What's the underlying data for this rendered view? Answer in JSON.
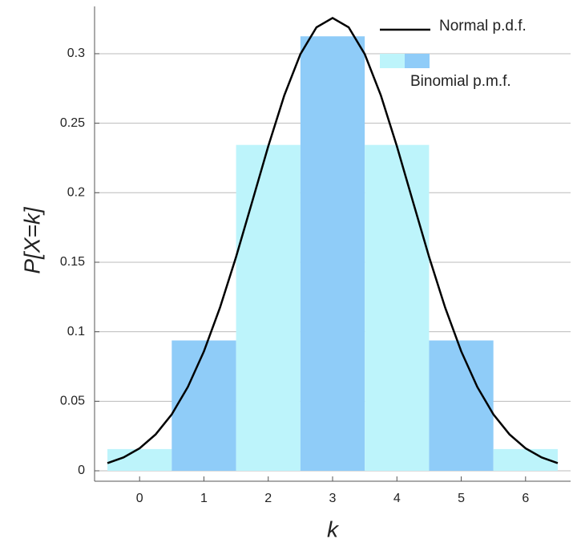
{
  "chart_data": {
    "type": "bar",
    "x": [
      0,
      1,
      2,
      3,
      4,
      5,
      6
    ],
    "xlabel": "k",
    "ylabel": "P[X=k]",
    "xlim": [
      -0.7,
      6.7
    ],
    "ylim": [
      -0.0075,
      0.334
    ],
    "xticks": [
      0,
      1,
      2,
      3,
      4,
      5,
      6
    ],
    "yticks": [
      0,
      0.05,
      0.1,
      0.15,
      0.2,
      0.25,
      0.3
    ],
    "grid": true,
    "legend": "top-right",
    "series": [
      {
        "name": "Binomial p.m.f.",
        "type": "bar",
        "colors": [
          "#bdf4fb",
          "#8fccf8",
          "#bdf4fb",
          "#8fccf8",
          "#bdf4fb",
          "#8fccf8",
          "#bdf4fb"
        ],
        "values": [
          0.015625,
          0.09375,
          0.234375,
          0.3125,
          0.234375,
          0.09375,
          0.015625
        ]
      },
      {
        "name": "Normal p.d.f.",
        "type": "line",
        "color": "#000000",
        "x": [
          -0.5,
          -0.25,
          0,
          0.25,
          0.5,
          0.75,
          1,
          1.25,
          1.5,
          1.75,
          2,
          2.25,
          2.5,
          2.75,
          3,
          3.25,
          3.5,
          3.75,
          4,
          4.25,
          4.5,
          4.75,
          5,
          5.25,
          5.5,
          5.75,
          6,
          6.25,
          6.5
        ],
        "values": [
          0.0055,
          0.0096,
          0.0162,
          0.0262,
          0.0406,
          0.0603,
          0.0859,
          0.1174,
          0.1539,
          0.1935,
          0.2334,
          0.2701,
          0.2997,
          0.319,
          0.3257,
          0.319,
          0.2997,
          0.2701,
          0.2334,
          0.1935,
          0.1539,
          0.1174,
          0.0859,
          0.0603,
          0.0406,
          0.0262,
          0.0162,
          0.0096,
          0.0055
        ]
      }
    ]
  }
}
